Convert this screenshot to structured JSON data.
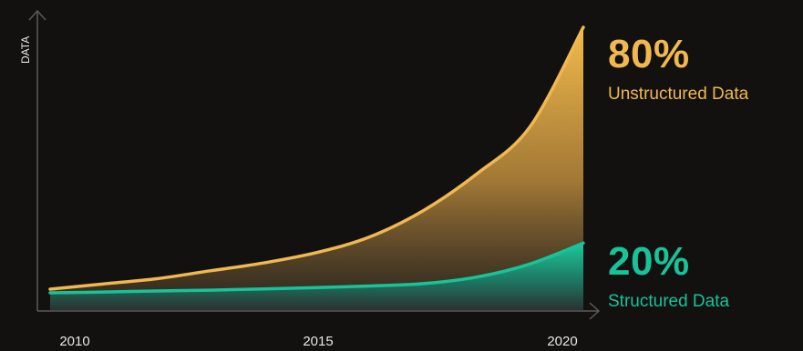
{
  "chart_data": {
    "type": "area",
    "ylabel": "DATA",
    "xlabel": "",
    "x_ticks": [
      "2010",
      "2015",
      "2020"
    ],
    "x": [
      2010,
      2011,
      2012,
      2013,
      2014,
      2015,
      2016,
      2017,
      2018,
      2019,
      2020
    ],
    "ylim": [
      0,
      100
    ],
    "grid": false,
    "series": [
      {
        "name": "Unstructured Data",
        "share": "80%",
        "color": "#f0b84e",
        "values": [
          0,
          2,
          4,
          7,
          10,
          14,
          20,
          30,
          44,
          62,
          100
        ]
      },
      {
        "name": "Structured Data",
        "share": "20%",
        "color": "#17c398",
        "values": [
          0,
          0.3,
          0.7,
          1,
          1.5,
          2,
          2.6,
          3.5,
          6,
          11,
          19
        ]
      }
    ]
  },
  "colors": {
    "background": "#121110",
    "axis": "#5a5a5a",
    "tick_text": "#e6e6e6",
    "unstructured": "#f0b84e",
    "structured": "#17c398"
  }
}
